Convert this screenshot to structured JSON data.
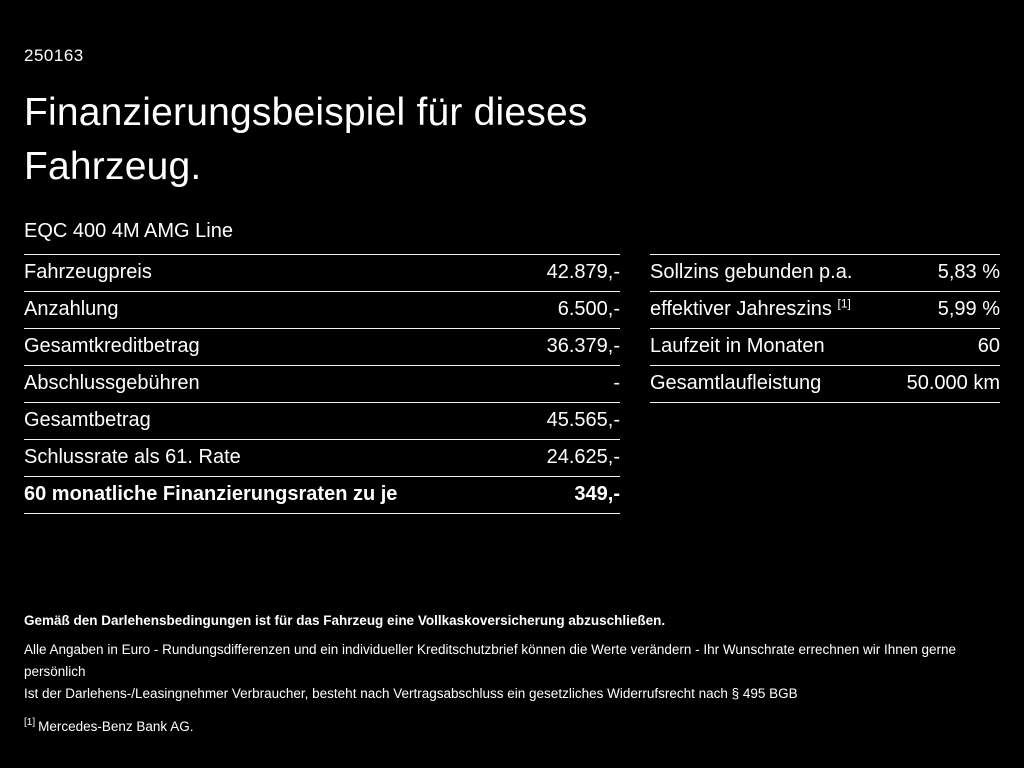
{
  "colors": {
    "background": "#000000",
    "text": "#ffffff",
    "divider": "#f2f2f2"
  },
  "page": {
    "id": "250163",
    "title_line1": "Finanzierungsbeispiel für dieses",
    "title_line2": "Fahrzeug.",
    "subtitle": "EQC 400 4M AMG Line"
  },
  "left_table": {
    "rows": [
      {
        "label": "Fahrzeugpreis",
        "value": "42.879,-"
      },
      {
        "label": "Anzahlung",
        "value": "6.500,-"
      },
      {
        "label": "Gesamtkreditbetrag",
        "value": "36.379,-"
      },
      {
        "label": "Abschlussgebühren",
        "value": "-"
      },
      {
        "label": "Gesamtbetrag",
        "value": "45.565,-"
      },
      {
        "label": "Schlussrate als 61. Rate",
        "value": "24.625,-"
      },
      {
        "label": "60 monatliche Finanzierungsraten zu je",
        "value": "349,-"
      }
    ]
  },
  "right_table": {
    "rows": [
      {
        "label": "Sollzins gebunden p.a.",
        "sup": "",
        "value": "5,83 %"
      },
      {
        "label": "effektiver Jahreszins",
        "sup": "[1]",
        "value": "5,99 %"
      },
      {
        "label": "Laufzeit in Monaten",
        "sup": "",
        "value": "60"
      },
      {
        "label": "Gesamtlaufleistung",
        "sup": "",
        "value": "50.000 km"
      }
    ]
  },
  "notes": {
    "bold_note": "Gemäß den Darlehensbedingungen ist für das Fahrzeug eine Vollkaskoversicherung abzuschließen.",
    "note1": "Alle Angaben in Euro - Rundungsdifferenzen und ein individueller Kreditschutzbrief können die Werte verändern - Ihr Wunschrate errechnen wir Ihnen gerne persönlich",
    "note2": "Ist der Darlehens-/Leasingnehmer Verbraucher, besteht nach Vertragsabschluss ein gesetzliches Widerrufsrecht nach § 495 BGB",
    "ref_marker": "[1]",
    "ref_text": "Mercedes-Benz Bank AG."
  }
}
